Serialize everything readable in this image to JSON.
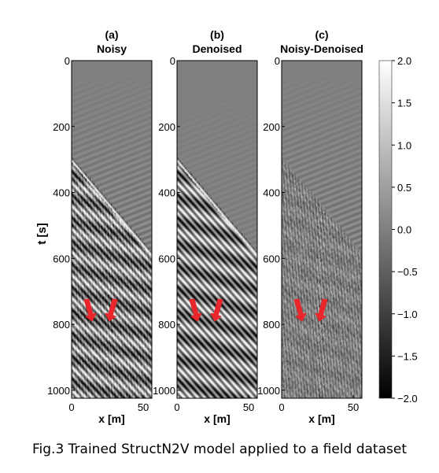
{
  "panels": [
    {
      "letter": "(a)",
      "name": "Noisy"
    },
    {
      "letter": "(b)",
      "name": "Denoised"
    },
    {
      "letter": "(c)",
      "name": "Noisy-Denoised"
    }
  ],
  "axes": {
    "y_label": "t [s]",
    "x_label": "x [m]",
    "y_ticks": [
      0,
      200,
      400,
      600,
      800,
      1000
    ],
    "x_ticks": [
      0,
      50
    ],
    "t_range": [
      0,
      1024
    ],
    "x_range": [
      0,
      56
    ]
  },
  "colorbar": {
    "range": [
      -2.0,
      2.0
    ],
    "ticks": [
      "2.0",
      "1.5",
      "1.0",
      "0.5",
      "0.0",
      "−0.5",
      "−1.0",
      "−1.5",
      "−2.0"
    ],
    "colormap": "gray"
  },
  "arrows": {
    "color": "#e8262b"
  },
  "caption": "Fig.3 Trained StructN2V model applied to a field dataset"
}
